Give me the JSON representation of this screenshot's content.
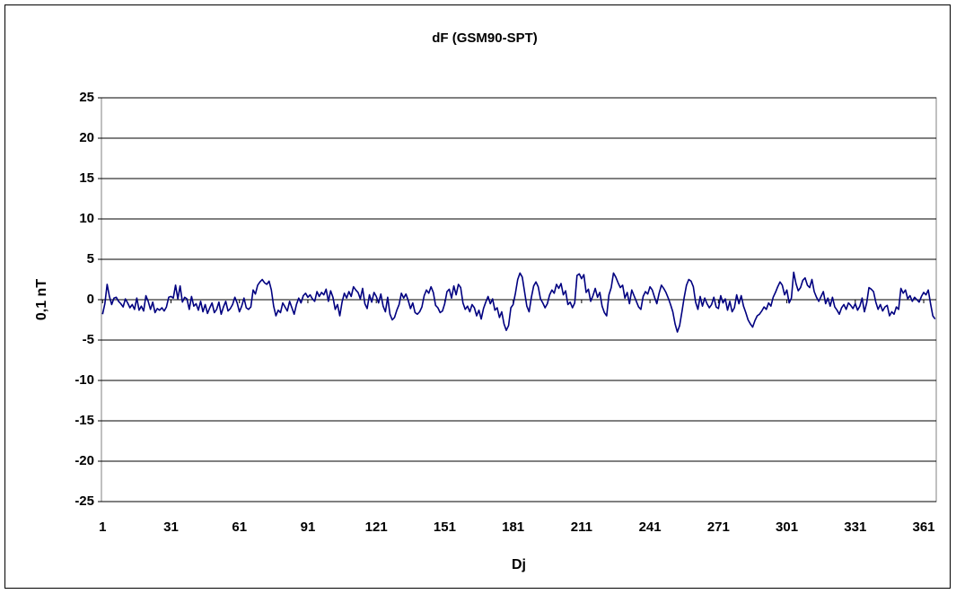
{
  "chart_data": {
    "type": "line",
    "title": "dF (GSM90-SPT)",
    "x_label": "Dj",
    "y_label": "0,1 nT",
    "color": "#000080",
    "grid": true,
    "xlim": [
      0.5,
      366.5
    ],
    "xticks": [
      1,
      31,
      61,
      91,
      121,
      151,
      181,
      211,
      241,
      271,
      301,
      331,
      361
    ],
    "ylim": [
      -25,
      25
    ],
    "yticks": [
      -25,
      -20,
      -15,
      -10,
      -5,
      0,
      5,
      10,
      15,
      20,
      25
    ],
    "x": [
      1,
      2,
      3,
      4,
      5,
      6,
      7,
      8,
      9,
      10,
      11,
      12,
      13,
      14,
      15,
      16,
      17,
      18,
      19,
      20,
      21,
      22,
      23,
      24,
      25,
      26,
      27,
      28,
      29,
      30,
      31,
      32,
      33,
      34,
      35,
      36,
      37,
      38,
      39,
      40,
      41,
      42,
      43,
      44,
      45,
      46,
      47,
      48,
      49,
      50,
      51,
      52,
      53,
      54,
      55,
      56,
      57,
      58,
      59,
      60,
      61,
      62,
      63,
      64,
      65,
      66,
      67,
      68,
      69,
      70,
      71,
      72,
      73,
      74,
      75,
      76,
      77,
      78,
      79,
      80,
      81,
      82,
      83,
      84,
      85,
      86,
      87,
      88,
      89,
      90,
      91,
      92,
      93,
      94,
      95,
      96,
      97,
      98,
      99,
      100,
      101,
      102,
      103,
      104,
      105,
      106,
      107,
      108,
      109,
      110,
      111,
      112,
      113,
      114,
      115,
      116,
      117,
      118,
      119,
      120,
      121,
      122,
      123,
      124,
      125,
      126,
      127,
      128,
      129,
      130,
      131,
      132,
      133,
      134,
      135,
      136,
      137,
      138,
      139,
      140,
      141,
      142,
      143,
      144,
      145,
      146,
      147,
      148,
      149,
      150,
      151,
      152,
      153,
      154,
      155,
      156,
      157,
      158,
      159,
      160,
      161,
      162,
      163,
      164,
      165,
      166,
      167,
      168,
      169,
      170,
      171,
      172,
      173,
      174,
      175,
      176,
      177,
      178,
      179,
      180,
      181,
      182,
      183,
      184,
      185,
      186,
      187,
      188,
      189,
      190,
      191,
      192,
      193,
      194,
      195,
      196,
      197,
      198,
      199,
      200,
      201,
      202,
      203,
      204,
      205,
      206,
      207,
      208,
      209,
      210,
      211,
      212,
      213,
      214,
      215,
      216,
      217,
      218,
      219,
      220,
      221,
      222,
      223,
      224,
      225,
      226,
      227,
      228,
      229,
      230,
      231,
      232,
      233,
      234,
      235,
      236,
      237,
      238,
      239,
      240,
      241,
      242,
      243,
      244,
      245,
      246,
      247,
      248,
      249,
      250,
      251,
      252,
      253,
      254,
      255,
      256,
      257,
      258,
      259,
      260,
      261,
      262,
      263,
      264,
      265,
      266,
      267,
      268,
      269,
      270,
      271,
      272,
      273,
      274,
      275,
      276,
      277,
      278,
      279,
      280,
      281,
      282,
      283,
      284,
      285,
      286,
      287,
      288,
      289,
      290,
      291,
      292,
      293,
      294,
      295,
      296,
      297,
      298,
      299,
      300,
      301,
      302,
      303,
      304,
      305,
      306,
      307,
      308,
      309,
      310,
      311,
      312,
      313,
      314,
      315,
      316,
      317,
      318,
      319,
      320,
      321,
      322,
      323,
      324,
      325,
      326,
      327,
      328,
      329,
      330,
      331,
      332,
      333,
      334,
      335,
      336,
      337,
      338,
      339,
      340,
      341,
      342,
      343,
      344,
      345,
      346,
      347,
      348,
      349,
      350,
      351,
      352,
      353,
      354,
      355,
      356,
      357,
      358,
      359,
      360,
      361,
      362,
      363,
      364,
      365,
      366
    ],
    "values": [
      -1.8,
      -0.5,
      1.9,
      0.4,
      -0.6,
      0.2,
      0.3,
      -0.2,
      -0.5,
      -0.9,
      0.1,
      -0.4,
      -1.0,
      -0.6,
      -1.2,
      0.2,
      -1.3,
      -0.8,
      -1.4,
      0.5,
      -0.2,
      -1.2,
      -0.3,
      -1.6,
      -1.1,
      -1.3,
      -1.0,
      -1.4,
      -0.9,
      0.3,
      0.4,
      0.2,
      1.8,
      0.1,
      1.7,
      -0.3,
      0.3,
      0.1,
      -1.2,
      0.4,
      -0.8,
      -0.5,
      -1.3,
      -0.2,
      -1.5,
      -0.6,
      -1.7,
      -1.0,
      -0.4,
      -1.6,
      -1.2,
      -0.3,
      -1.8,
      -0.9,
      -0.2,
      -1.4,
      -1.1,
      -0.6,
      0.3,
      -0.4,
      -1.5,
      -0.8,
      0.2,
      -1.0,
      -1.2,
      -0.9,
      1.2,
      0.7,
      1.8,
      2.2,
      2.5,
      2.1,
      1.9,
      2.3,
      1.2,
      -0.8,
      -2.0,
      -1.3,
      -1.6,
      -0.4,
      -0.9,
      -1.4,
      -0.2,
      -1.0,
      -1.8,
      -0.6,
      0.2,
      -0.4,
      0.5,
      0.8,
      0.3,
      0.6,
      0.1,
      -0.2,
      1.0,
      0.4,
      0.9,
      0.6,
      1.3,
      -0.2,
      1.1,
      0.3,
      -1.2,
      -0.6,
      -2.0,
      -0.3,
      0.8,
      0.2,
      1.0,
      0.4,
      1.6,
      1.2,
      0.9,
      0.1,
      1.4,
      -0.5,
      -1.1,
      0.6,
      -0.3,
      0.9,
      0.4,
      -0.4,
      0.7,
      -0.8,
      -1.5,
      0.3,
      -1.8,
      -2.5,
      -2.2,
      -1.3,
      -0.6,
      0.8,
      0.2,
      0.7,
      -0.1,
      -1.1,
      -0.4,
      -1.6,
      -1.8,
      -1.5,
      -0.9,
      0.5,
      1.2,
      0.8,
      1.6,
      0.9,
      -0.7,
      -1.0,
      -1.6,
      -1.4,
      -0.5,
      1.0,
      1.3,
      0.2,
      1.7,
      0.6,
      1.9,
      1.5,
      -0.4,
      -1.2,
      -0.8,
      -1.5,
      -0.6,
      -1.0,
      -2.0,
      -1.3,
      -2.4,
      -1.1,
      -0.3,
      0.4,
      -0.5,
      0.1,
      -1.3,
      -1.0,
      -2.2,
      -1.5,
      -3.0,
      -3.8,
      -3.2,
      -1.0,
      -0.6,
      0.8,
      2.5,
      3.3,
      2.8,
      1.0,
      -0.8,
      -1.5,
      0.3,
      1.7,
      2.2,
      1.6,
      0.1,
      -0.4,
      -1.0,
      -0.5,
      0.6,
      1.2,
      0.8,
      1.9,
      1.4,
      2.0,
      0.6,
      1.1,
      -0.6,
      -0.3,
      -1.0,
      -0.4,
      3.0,
      3.2,
      2.6,
      3.1,
      0.9,
      1.3,
      -0.2,
      0.5,
      1.4,
      0.3,
      0.9,
      -0.8,
      -1.6,
      -2.0,
      0.6,
      1.5,
      3.3,
      2.8,
      2.1,
      1.5,
      1.8,
      0.2,
      0.9,
      -0.5,
      1.2,
      0.5,
      -0.2,
      -0.9,
      -1.2,
      0.4,
      1.0,
      0.7,
      1.6,
      1.2,
      0.3,
      -0.5,
      0.8,
      1.8,
      1.4,
      0.9,
      0.2,
      -0.6,
      -1.5,
      -3.0,
      -4.0,
      -3.2,
      -1.5,
      0.3,
      1.8,
      2.5,
      2.3,
      1.6,
      -0.3,
      -1.2,
      0.4,
      -0.8,
      0.2,
      -0.5,
      -1.0,
      -0.6,
      0.3,
      -0.9,
      -1.1,
      0.5,
      -0.4,
      0.1,
      -1.3,
      -0.2,
      -1.5,
      -1.0,
      0.6,
      -0.5,
      0.5,
      -0.8,
      -1.6,
      -2.5,
      -3.0,
      -3.4,
      -2.6,
      -2.0,
      -1.8,
      -1.4,
      -0.9,
      -1.2,
      -0.4,
      -0.8,
      0.3,
      0.9,
      1.6,
      2.2,
      1.8,
      0.6,
      1.2,
      -0.4,
      0.2,
      3.4,
      2.0,
      1.1,
      1.5,
      2.4,
      2.7,
      1.8,
      1.5,
      2.5,
      1.0,
      0.3,
      -0.2,
      0.4,
      1.0,
      -0.5,
      0.2,
      -0.8,
      0.3,
      -0.9,
      -1.3,
      -1.8,
      -1.0,
      -0.6,
      -1.2,
      -0.4,
      -0.7,
      -1.1,
      -0.5,
      -1.3,
      -0.8,
      0.2,
      -1.5,
      -0.4,
      1.5,
      1.3,
      1.0,
      -0.3,
      -1.2,
      -0.6,
      -1.4,
      -0.9,
      -0.7,
      -2.0,
      -1.5,
      -1.8,
      -0.9,
      -1.2,
      1.4,
      0.8,
      1.2,
      0.1,
      0.5,
      -0.2,
      0.3,
      0.0,
      -0.3,
      0.4,
      0.9,
      0.6,
      1.2,
      -0.5,
      -2.0,
      -2.4
    ]
  }
}
